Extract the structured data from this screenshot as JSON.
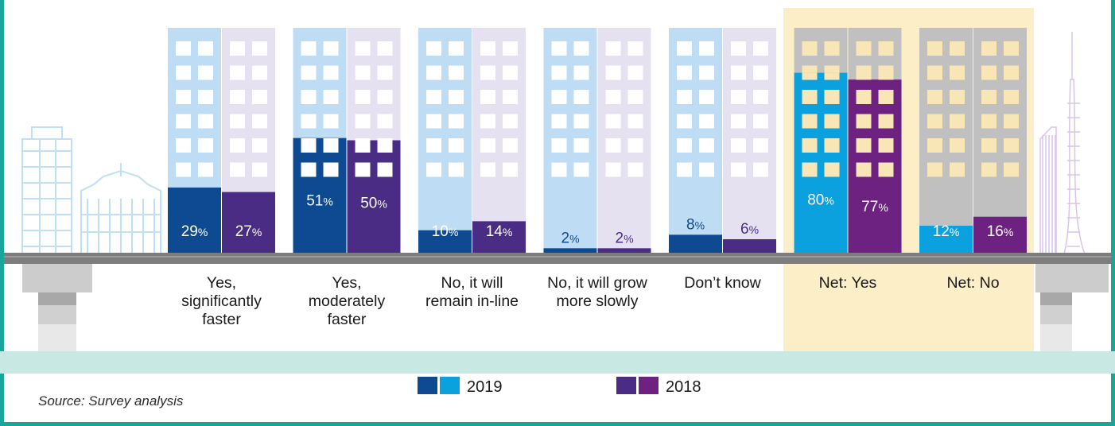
{
  "chart_data": {
    "type": "bar",
    "categories": [
      "Yes, significantly faster",
      "Yes, moderately faster",
      "No, it will remain in-line",
      "No, it will grow more slowly",
      "Don’t know",
      "Net: Yes",
      "Net: No"
    ],
    "category_lines": [
      [
        "Yes,",
        "significantly",
        "faster"
      ],
      [
        "Yes,",
        "moderately",
        "faster"
      ],
      [
        "No, it will",
        "remain in-line"
      ],
      [
        "No, it will grow",
        "more slowly"
      ],
      [
        "Don’t know"
      ],
      [
        "Net: Yes"
      ],
      [
        "Net: No"
      ]
    ],
    "series": [
      {
        "name": "2019",
        "values": [
          29,
          51,
          10,
          2,
          8,
          80,
          12
        ]
      },
      {
        "name": "2018",
        "values": [
          27,
          50,
          14,
          2,
          6,
          77,
          16
        ]
      }
    ],
    "value_suffix": "%",
    "ylim": [
      0,
      100
    ],
    "highlighted_categories": [
      "Net: Yes"
    ],
    "source": "Source: Survey analysis",
    "colors": {
      "2019_dark": "#0d4a91",
      "2019_light": "#0aa1de",
      "2018_dark": "#4a2c85",
      "2018_light": "#6d2181",
      "2019_background": "#bedcf3",
      "2018_background": "#e6e1f0",
      "net_background": "#c0c0c0",
      "window_normal": "#ffffff",
      "window_net": "#f8e6b6",
      "highlight": "#fcefc7",
      "footer": "#c8e9e3",
      "border": "#1aa59a",
      "road": "#7d7d7d"
    }
  }
}
